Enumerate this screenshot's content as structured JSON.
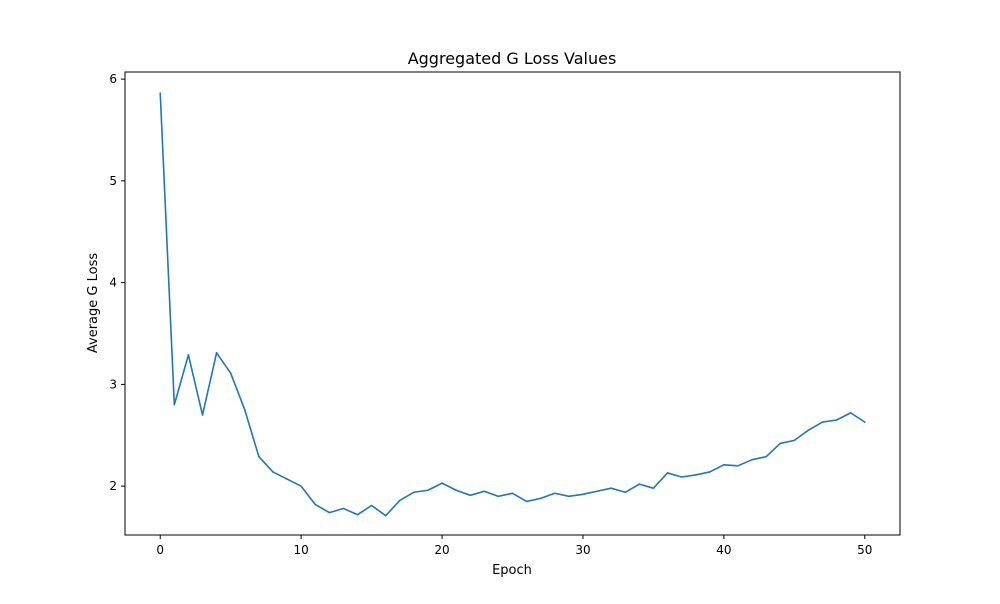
{
  "chart_data": {
    "type": "line",
    "title": "Aggregated G Loss Values",
    "xlabel": "Epoch",
    "ylabel": "Average G Loss",
    "xlim": [
      -2.5,
      52.5
    ],
    "ylim": [
      1.52,
      6.07
    ],
    "xticks": [
      0,
      10,
      20,
      30,
      40,
      50
    ],
    "yticks": [
      2,
      3,
      4,
      5,
      6
    ],
    "grid": false,
    "legend": "none",
    "colors": {
      "line": "#1f77b4",
      "axes": "#000000",
      "background": "#ffffff"
    },
    "series": [
      {
        "x": [
          0,
          1,
          2,
          3,
          4,
          5,
          6,
          7,
          8,
          9,
          10,
          11,
          12,
          13,
          14,
          15,
          16,
          17,
          18,
          19,
          20,
          21,
          22,
          23,
          24,
          25,
          26,
          27,
          28,
          29,
          30,
          31,
          32,
          33,
          34,
          35,
          36,
          37,
          38,
          39,
          40,
          41,
          42,
          43,
          44,
          45,
          46,
          47,
          48,
          49,
          50
        ],
        "values": [
          5.86,
          2.8,
          3.29,
          2.7,
          3.31,
          3.11,
          2.75,
          2.29,
          2.14,
          2.07,
          2.0,
          1.82,
          1.74,
          1.78,
          1.72,
          1.81,
          1.71,
          1.86,
          1.94,
          1.96,
          2.03,
          1.96,
          1.91,
          1.95,
          1.9,
          1.93,
          1.85,
          1.88,
          1.93,
          1.9,
          1.92,
          1.95,
          1.98,
          1.94,
          2.02,
          1.98,
          2.13,
          2.09,
          2.11,
          2.14,
          2.21,
          2.2,
          2.26,
          2.29,
          2.42,
          2.45,
          2.55,
          2.63,
          2.65,
          2.72,
          2.63
        ]
      }
    ]
  }
}
